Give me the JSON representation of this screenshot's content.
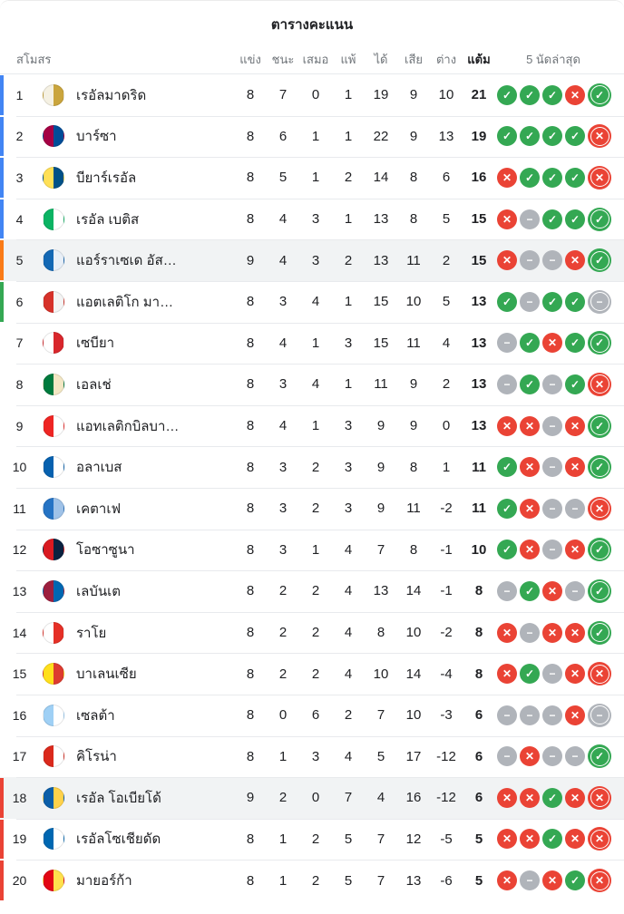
{
  "title": "ตารางคะแนน",
  "columns": {
    "club": "สโมสร",
    "played": "แข่ง",
    "won": "ชนะ",
    "drawn": "เสมอ",
    "lost": "แพ้",
    "gf": "ได้",
    "ga": "เสีย",
    "gd": "ต่าง",
    "points": "แต้ม",
    "last5": "5 นัดล่าสุด"
  },
  "form_colors": {
    "W": "#34a853",
    "L": "#ea4335",
    "D": "#b0b4ba"
  },
  "form_glyphs": {
    "W": "✓",
    "L": "✕",
    "D": "−"
  },
  "qual_colors": {
    "ucl": "#4285f4",
    "uel": "#fa7b17",
    "uecl": "#34a853",
    "releg": "#ea4335"
  },
  "highlight_color": "#f1f3f4",
  "rows": [
    {
      "rank": 1,
      "name": "เรอัลมาดริด",
      "played": 8,
      "won": 7,
      "drawn": 0,
      "lost": 1,
      "gf": 19,
      "ga": 9,
      "gd": "10",
      "points": 21,
      "form": [
        "W",
        "W",
        "W",
        "L",
        "W"
      ],
      "qual": "ucl",
      "highlighted": false,
      "crest": [
        "#f5f1e3",
        "#caa53d"
      ]
    },
    {
      "rank": 2,
      "name": "บาร์ซา",
      "played": 8,
      "won": 6,
      "drawn": 1,
      "lost": 1,
      "gf": 22,
      "ga": 9,
      "gd": "13",
      "points": 19,
      "form": [
        "W",
        "W",
        "W",
        "W",
        "L"
      ],
      "qual": "ucl",
      "highlighted": false,
      "crest": [
        "#a50044",
        "#004d98"
      ]
    },
    {
      "rank": 3,
      "name": "บียาร์เรอัล",
      "played": 8,
      "won": 5,
      "drawn": 1,
      "lost": 2,
      "gf": 14,
      "ga": 8,
      "gd": "6",
      "points": 16,
      "form": [
        "L",
        "W",
        "W",
        "W",
        "L"
      ],
      "qual": "ucl",
      "highlighted": false,
      "crest": [
        "#ffe057",
        "#005187"
      ]
    },
    {
      "rank": 4,
      "name": "เรอัล เบติส",
      "played": 8,
      "won": 4,
      "drawn": 3,
      "lost": 1,
      "gf": 13,
      "ga": 8,
      "gd": "5",
      "points": 15,
      "form": [
        "L",
        "D",
        "W",
        "W",
        "W"
      ],
      "qual": "ucl",
      "highlighted": false,
      "crest": [
        "#0bb363",
        "#ffffff"
      ]
    },
    {
      "rank": 5,
      "name": "แอร์ราเซเด อัส…",
      "played": 9,
      "won": 4,
      "drawn": 3,
      "lost": 2,
      "gf": 13,
      "ga": 11,
      "gd": "2",
      "points": 15,
      "form": [
        "L",
        "D",
        "D",
        "L",
        "W"
      ],
      "qual": "uel",
      "highlighted": true,
      "crest": [
        "#1368b4",
        "#e8eff7"
      ]
    },
    {
      "rank": 6,
      "name": "แอตเลติโก มา…",
      "played": 8,
      "won": 3,
      "drawn": 4,
      "lost": 1,
      "gf": 15,
      "ga": 10,
      "gd": "5",
      "points": 13,
      "form": [
        "W",
        "D",
        "W",
        "W",
        "D"
      ],
      "qual": "uecl",
      "highlighted": false,
      "crest": [
        "#d6322a",
        "#f4f4f4"
      ]
    },
    {
      "rank": 7,
      "name": "เซบียา",
      "played": 8,
      "won": 4,
      "drawn": 1,
      "lost": 3,
      "gf": 15,
      "ga": 11,
      "gd": "4",
      "points": 13,
      "form": [
        "D",
        "W",
        "L",
        "W",
        "W"
      ],
      "qual": null,
      "highlighted": false,
      "crest": [
        "#ffffff",
        "#d8272c"
      ]
    },
    {
      "rank": 8,
      "name": "เอลเช่",
      "played": 8,
      "won": 3,
      "drawn": 4,
      "lost": 1,
      "gf": 11,
      "ga": 9,
      "gd": "2",
      "points": 13,
      "form": [
        "D",
        "W",
        "D",
        "W",
        "L"
      ],
      "qual": null,
      "highlighted": false,
      "crest": [
        "#007a3d",
        "#f3e7c4"
      ]
    },
    {
      "rank": 9,
      "name": "แอทเลติกบิลบา…",
      "played": 8,
      "won": 4,
      "drawn": 1,
      "lost": 3,
      "gf": 9,
      "ga": 9,
      "gd": "0",
      "points": 13,
      "form": [
        "L",
        "L",
        "D",
        "L",
        "W"
      ],
      "qual": null,
      "highlighted": false,
      "crest": [
        "#ee2523",
        "#ffffff"
      ]
    },
    {
      "rank": 10,
      "name": "อลาเบส",
      "played": 8,
      "won": 3,
      "drawn": 2,
      "lost": 3,
      "gf": 9,
      "ga": 8,
      "gd": "1",
      "points": 11,
      "form": [
        "W",
        "L",
        "D",
        "L",
        "W"
      ],
      "qual": null,
      "highlighted": false,
      "crest": [
        "#0761af",
        "#ffffff"
      ]
    },
    {
      "rank": 11,
      "name": "เคตาเฟ",
      "played": 8,
      "won": 3,
      "drawn": 2,
      "lost": 3,
      "gf": 9,
      "ga": 11,
      "gd": "-2",
      "points": 11,
      "form": [
        "W",
        "L",
        "D",
        "D",
        "L"
      ],
      "qual": null,
      "highlighted": false,
      "crest": [
        "#2573c4",
        "#9fc2e8"
      ]
    },
    {
      "rank": 12,
      "name": "โอซาซูนา",
      "played": 8,
      "won": 3,
      "drawn": 1,
      "lost": 4,
      "gf": 7,
      "ga": 8,
      "gd": "-1",
      "points": 10,
      "form": [
        "W",
        "L",
        "D",
        "L",
        "W"
      ],
      "qual": null,
      "highlighted": false,
      "crest": [
        "#d91a21",
        "#0a2240"
      ]
    },
    {
      "rank": 13,
      "name": "เลบันเต",
      "played": 8,
      "won": 2,
      "drawn": 2,
      "lost": 4,
      "gf": 13,
      "ga": 14,
      "gd": "-1",
      "points": 8,
      "form": [
        "D",
        "W",
        "L",
        "D",
        "W"
      ],
      "qual": null,
      "highlighted": false,
      "crest": [
        "#9c1f3e",
        "#0067b2"
      ]
    },
    {
      "rank": 14,
      "name": "ราโย",
      "played": 8,
      "won": 2,
      "drawn": 2,
      "lost": 4,
      "gf": 8,
      "ga": 10,
      "gd": "-2",
      "points": 8,
      "form": [
        "L",
        "D",
        "L",
        "L",
        "W"
      ],
      "qual": null,
      "highlighted": false,
      "crest": [
        "#ffffff",
        "#e53027"
      ]
    },
    {
      "rank": 15,
      "name": "บาเลนเซีย",
      "played": 8,
      "won": 2,
      "drawn": 2,
      "lost": 4,
      "gf": 10,
      "ga": 14,
      "gd": "-4",
      "points": 8,
      "form": [
        "L",
        "W",
        "D",
        "L",
        "L"
      ],
      "qual": null,
      "highlighted": false,
      "crest": [
        "#ffdf1c",
        "#dd3b2f"
      ]
    },
    {
      "rank": 16,
      "name": "เซลต้า",
      "played": 8,
      "won": 0,
      "drawn": 6,
      "lost": 2,
      "gf": 7,
      "ga": 10,
      "gd": "-3",
      "points": 6,
      "form": [
        "D",
        "D",
        "D",
        "L",
        "D"
      ],
      "qual": null,
      "highlighted": false,
      "crest": [
        "#9fd0f5",
        "#ffffff"
      ]
    },
    {
      "rank": 17,
      "name": "คิโรน่า",
      "played": 8,
      "won": 1,
      "drawn": 3,
      "lost": 4,
      "gf": 5,
      "ga": 17,
      "gd": "-12",
      "points": 6,
      "form": [
        "D",
        "L",
        "D",
        "D",
        "W"
      ],
      "qual": null,
      "highlighted": false,
      "crest": [
        "#da291c",
        "#ffffff"
      ]
    },
    {
      "rank": 18,
      "name": "เรอัล โอเบียโด้",
      "played": 9,
      "won": 2,
      "drawn": 0,
      "lost": 7,
      "gf": 4,
      "ga": 16,
      "gd": "-12",
      "points": 6,
      "form": [
        "L",
        "L",
        "W",
        "L",
        "L"
      ],
      "qual": "releg",
      "highlighted": true,
      "crest": [
        "#0b5ea8",
        "#ffd24a"
      ]
    },
    {
      "rank": 19,
      "name": "เรอัลโซเชียดัด",
      "played": 8,
      "won": 1,
      "drawn": 2,
      "lost": 5,
      "gf": 7,
      "ga": 12,
      "gd": "-5",
      "points": 5,
      "form": [
        "L",
        "L",
        "W",
        "L",
        "L"
      ],
      "qual": "releg",
      "highlighted": false,
      "crest": [
        "#0067b1",
        "#ffffff"
      ]
    },
    {
      "rank": 20,
      "name": "มายอร์ก้า",
      "played": 8,
      "won": 1,
      "drawn": 2,
      "lost": 5,
      "gf": 7,
      "ga": 13,
      "gd": "-6",
      "points": 5,
      "form": [
        "L",
        "D",
        "L",
        "W",
        "L"
      ],
      "qual": "releg",
      "highlighted": false,
      "crest": [
        "#e20613",
        "#ffe14d"
      ]
    }
  ]
}
